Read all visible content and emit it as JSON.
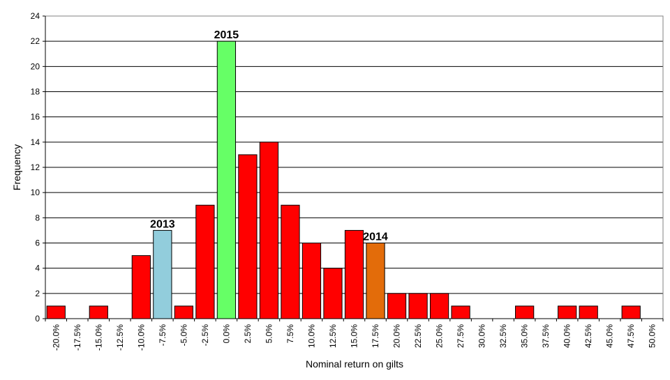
{
  "chart_data": {
    "type": "bar",
    "title": "",
    "xlabel": "Nominal return on gilts",
    "ylabel": "Frequency",
    "ylim": [
      0,
      24
    ],
    "yticks": [
      0,
      2,
      4,
      6,
      8,
      10,
      12,
      14,
      16,
      18,
      20,
      22,
      24
    ],
    "ytick_labels": [
      "0",
      "2",
      "4",
      "6",
      "8",
      "10",
      "12",
      "14",
      "16",
      "18",
      "20",
      "22",
      "24"
    ],
    "grid": true,
    "legend": "none",
    "categories": [
      "-20.0%",
      "-17.5%",
      "-15.0%",
      "-12.5%",
      "-10.0%",
      "-7.5%",
      "-5.0%",
      "-2.5%",
      "0.0%",
      "2.5%",
      "5.0%",
      "7.5%",
      "10.0%",
      "12.5%",
      "15.0%",
      "17.5%",
      "20.0%",
      "22.5%",
      "25.0%",
      "27.5%",
      "30.0%",
      "32.5%",
      "35.0%",
      "37.5%",
      "40.0%",
      "42.5%",
      "45.0%",
      "47.5%",
      "50.0%"
    ],
    "values": [
      1,
      0,
      1,
      0,
      5,
      7,
      1,
      9,
      22,
      13,
      14,
      9,
      6,
      4,
      7,
      6,
      2,
      2,
      2,
      1,
      0,
      0,
      1,
      0,
      1,
      1,
      0,
      1,
      0
    ],
    "bar_colors": [
      "#ff0000",
      "#ff0000",
      "#ff0000",
      "#ff0000",
      "#ff0000",
      "#92cddc",
      "#ff0000",
      "#ff0000",
      "#66ff66",
      "#ff0000",
      "#ff0000",
      "#ff0000",
      "#ff0000",
      "#ff0000",
      "#ff0000",
      "#e36c0a",
      "#ff0000",
      "#ff0000",
      "#ff0000",
      "#ff0000",
      "#ff0000",
      "#ff0000",
      "#ff0000",
      "#ff0000",
      "#ff0000",
      "#ff0000",
      "#ff0000",
      "#ff0000",
      "#ff0000"
    ],
    "annotations": [
      {
        "text": "2013",
        "category": "-7.5%"
      },
      {
        "text": "2015",
        "category": "0.0%"
      },
      {
        "text": "2014",
        "category": "17.5%"
      }
    ]
  },
  "colors": {
    "default_bar": "#ff0000",
    "highlight_2013": "#92cddc",
    "highlight_2015": "#66ff66",
    "highlight_2014": "#e36c0a",
    "gridline": "#000000",
    "bar_outline": "#000000"
  }
}
